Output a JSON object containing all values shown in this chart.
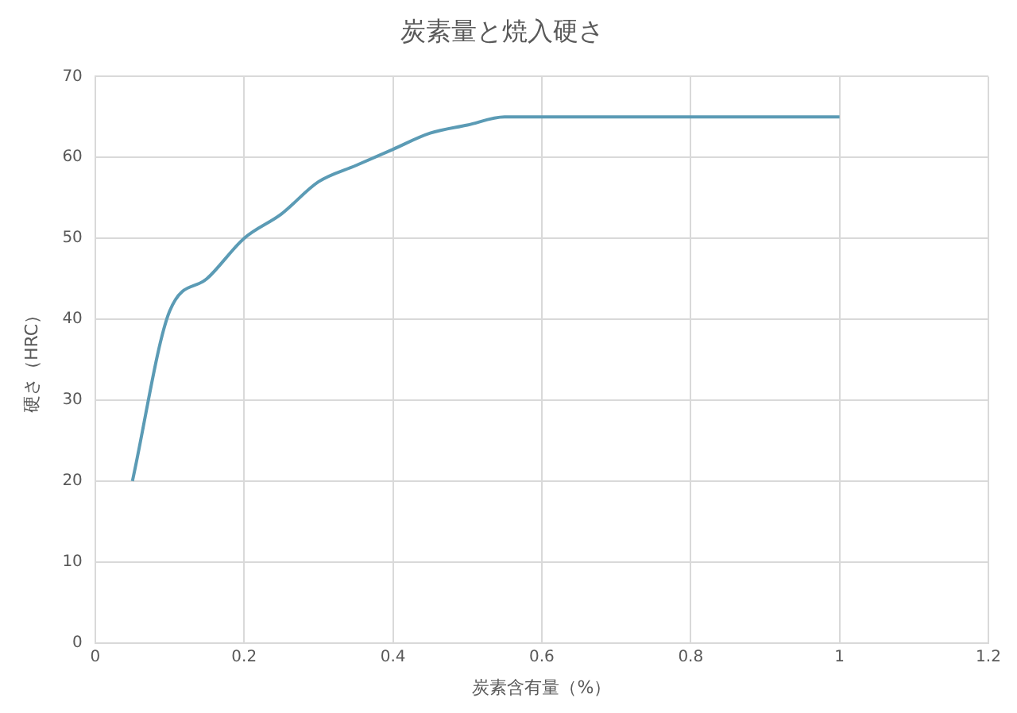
{
  "chart_data": {
    "type": "line",
    "title": "炭素量と焼入硬さ",
    "xlabel": "炭素含有量（%）",
    "ylabel": "硬さ（HRC）",
    "x": [
      0.05,
      0.1,
      0.15,
      0.2,
      0.25,
      0.3,
      0.35,
      0.4,
      0.45,
      0.5,
      0.55,
      0.6,
      0.7,
      0.8,
      0.9,
      1
    ],
    "series": [
      {
        "color": "#5b9bb5",
        "values": [
          20,
          41,
          45,
          50,
          53,
          57,
          59,
          61,
          63,
          64,
          65,
          65,
          65,
          65,
          65,
          65
        ]
      }
    ],
    "xlim": [
      0,
      1.2
    ],
    "xticks": [
      0,
      0.2,
      0.4,
      0.6,
      0.8,
      1,
      1.2
    ],
    "ylim": [
      0,
      70
    ],
    "yticks": [
      0,
      10,
      20,
      30,
      40,
      50,
      60,
      70
    ],
    "grid": true,
    "legend": false,
    "marker": "none",
    "line_style": "solid"
  }
}
